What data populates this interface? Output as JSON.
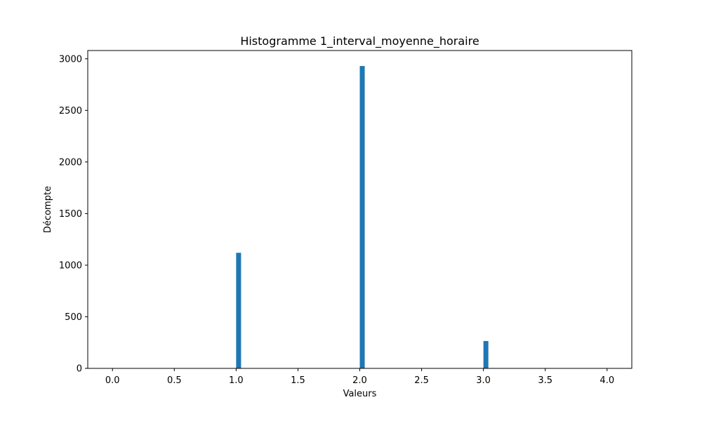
{
  "chart_data": {
    "type": "bar",
    "title": "Histogramme 1_interval_moyenne_horaire",
    "xlabel": "Valeurs",
    "ylabel": "Décompte",
    "xlim": [
      -0.2,
      4.2
    ],
    "ylim": [
      0,
      3080
    ],
    "xticks": [
      0.0,
      0.5,
      1.0,
      1.5,
      2.0,
      2.5,
      3.0,
      3.5,
      4.0
    ],
    "xtick_labels": [
      "0.0",
      "0.5",
      "1.0",
      "1.5",
      "2.0",
      "2.5",
      "3.0",
      "3.5",
      "4.0"
    ],
    "yticks": [
      0,
      500,
      1000,
      1500,
      2000,
      2500,
      3000
    ],
    "ytick_labels": [
      "0",
      "500",
      "1000",
      "1500",
      "2000",
      "2500",
      "3000"
    ],
    "bin_width": 0.04,
    "bins": [
      {
        "x_start": 1.0,
        "value": 1120
      },
      {
        "x_start": 2.0,
        "value": 2930
      },
      {
        "x_start": 3.0,
        "value": 265
      }
    ],
    "grid": false,
    "colors": {
      "bar": "#1f77b4",
      "axis": "#000000"
    }
  }
}
